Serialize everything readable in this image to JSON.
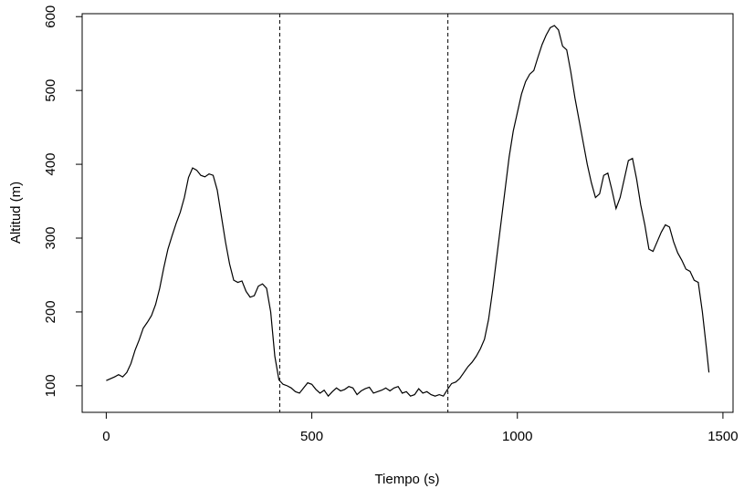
{
  "chart_data": {
    "type": "line",
    "x_label": "Tiempo (s)",
    "y_label": "Altitud (m)",
    "xlim": [
      -58.6,
      1524.6
    ],
    "ylim": [
      64,
      604
    ],
    "xticks": [
      0,
      500,
      1000,
      1500
    ],
    "yticks": [
      100,
      200,
      300,
      400,
      500,
      600
    ],
    "vlines": [
      422,
      831
    ],
    "color": "#000000",
    "x": [
      0,
      20,
      30,
      40,
      50,
      60,
      70,
      80,
      90,
      100,
      110,
      120,
      130,
      140,
      150,
      160,
      170,
      180,
      190,
      200,
      210,
      220,
      230,
      240,
      250,
      260,
      270,
      280,
      290,
      300,
      310,
      320,
      330,
      340,
      350,
      360,
      370,
      380,
      390,
      400,
      410,
      420,
      430,
      440,
      450,
      460,
      470,
      480,
      490,
      500,
      510,
      520,
      530,
      540,
      550,
      560,
      570,
      580,
      590,
      600,
      610,
      620,
      630,
      640,
      650,
      660,
      670,
      680,
      690,
      700,
      710,
      720,
      730,
      740,
      750,
      760,
      770,
      780,
      790,
      800,
      810,
      820,
      830,
      840,
      850,
      860,
      870,
      880,
      890,
      900,
      910,
      920,
      930,
      940,
      950,
      960,
      970,
      980,
      990,
      1000,
      1010,
      1020,
      1030,
      1040,
      1050,
      1060,
      1070,
      1080,
      1090,
      1100,
      1110,
      1120,
      1130,
      1140,
      1150,
      1160,
      1170,
      1180,
      1190,
      1200,
      1210,
      1220,
      1230,
      1240,
      1250,
      1260,
      1270,
      1280,
      1290,
      1300,
      1310,
      1320,
      1330,
      1340,
      1350,
      1360,
      1370,
      1380,
      1390,
      1400,
      1410,
      1420,
      1430,
      1440,
      1450,
      1460,
      1466
    ],
    "values": [
      107,
      112,
      115,
      112,
      118,
      130,
      148,
      162,
      178,
      186,
      195,
      210,
      232,
      260,
      285,
      303,
      320,
      335,
      355,
      382,
      395,
      392,
      385,
      383,
      387,
      385,
      365,
      330,
      295,
      265,
      243,
      240,
      242,
      228,
      220,
      222,
      235,
      238,
      232,
      200,
      140,
      108,
      102,
      100,
      97,
      92,
      90,
      97,
      104,
      102,
      95,
      90,
      94,
      86,
      92,
      97,
      93,
      95,
      99,
      97,
      88,
      93,
      96,
      98,
      90,
      92,
      94,
      97,
      93,
      97,
      99,
      90,
      92,
      86,
      88,
      96,
      90,
      92,
      88,
      86,
      88,
      86,
      95,
      103,
      105,
      110,
      118,
      126,
      132,
      140,
      150,
      163,
      190,
      230,
      275,
      320,
      365,
      410,
      445,
      470,
      495,
      512,
      522,
      527,
      545,
      562,
      575,
      585,
      588,
      582,
      560,
      555,
      525,
      490,
      460,
      430,
      400,
      375,
      355,
      360,
      385,
      388,
      365,
      340,
      355,
      380,
      405,
      408,
      380,
      345,
      318,
      285,
      282,
      295,
      308,
      318,
      315,
      295,
      280,
      270,
      258,
      255,
      243,
      240,
      200,
      150,
      118
    ]
  }
}
